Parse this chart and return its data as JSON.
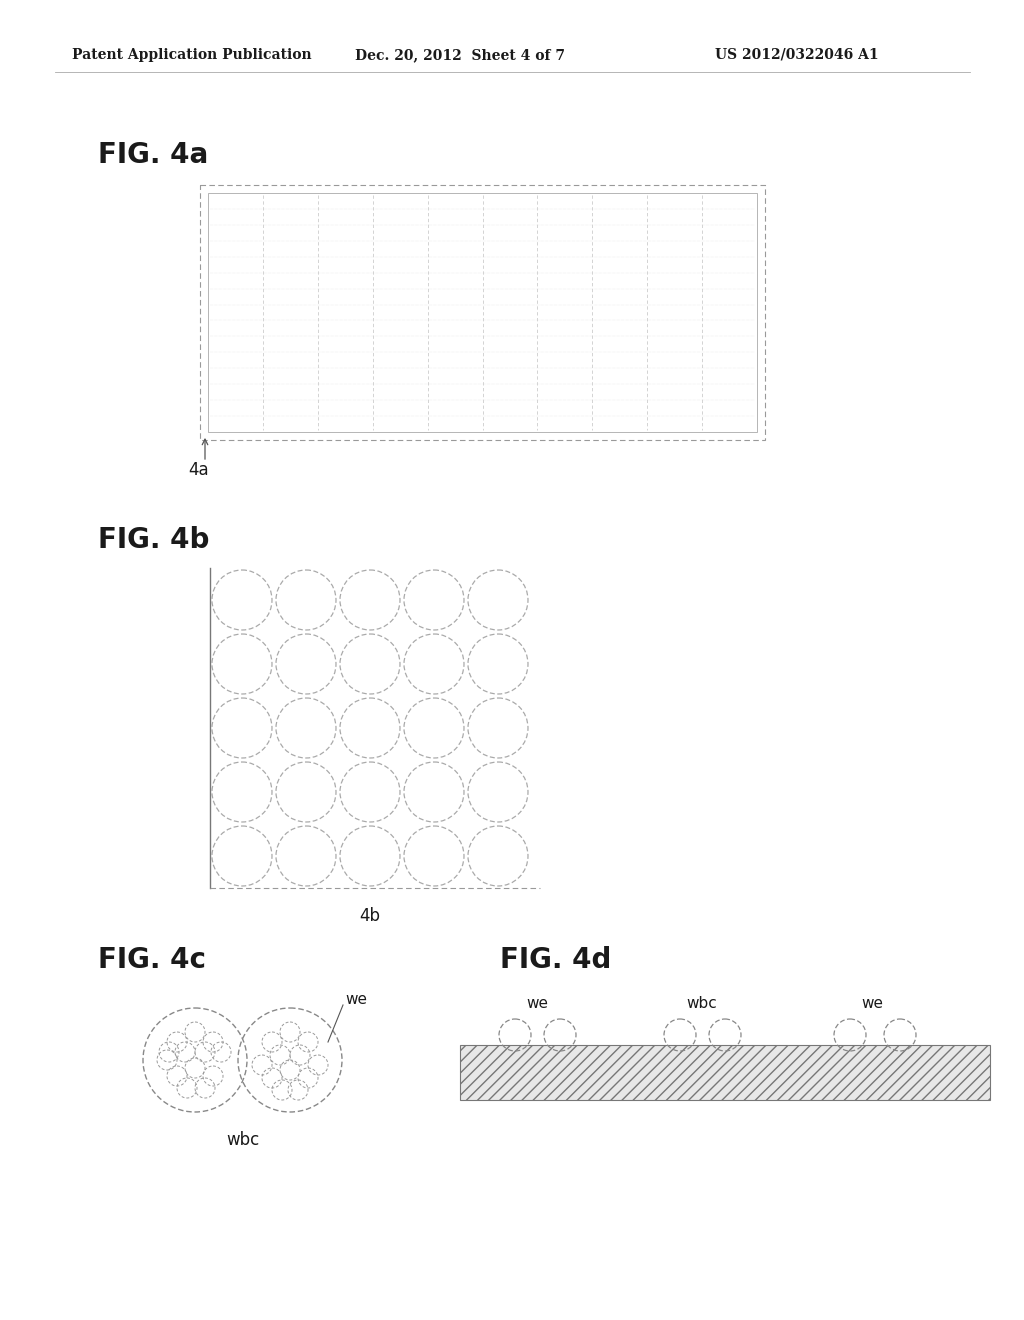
{
  "header_left": "Patent Application Publication",
  "header_mid": "Dec. 20, 2012  Sheet 4 of 7",
  "header_right": "US 2012/0322046 A1",
  "fig4a_label": "FIG. 4a",
  "fig4a_sublabel": "4a",
  "fig4b_label": "FIG. 4b",
  "fig4b_sublabel": "4b",
  "fig4c_label": "FIG. 4c",
  "fig4c_wbc_label": "wbc",
  "fig4c_we_label": "we",
  "fig4d_label": "FIG. 4d",
  "fig4d_we_label1": "we",
  "fig4d_wbc_label": "wbc",
  "fig4d_we_label2": "we",
  "bg_color": "#ffffff",
  "text_color": "#1a1a1a",
  "line_color": "#888888"
}
